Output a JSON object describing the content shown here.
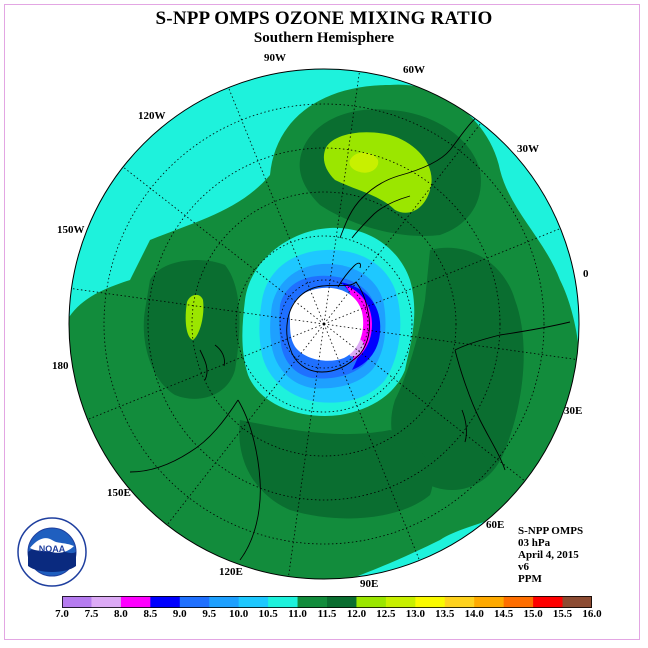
{
  "title": "S-NPP OMPS OZONE MIXING RATIO",
  "subtitle": "Southern Hemisphere",
  "longitude_labels": [
    "90W",
    "60W",
    "30W",
    "0",
    "30E",
    "60E",
    "90E",
    "120E",
    "150E",
    "180",
    "150W",
    "120W"
  ],
  "info": {
    "instrument": "S-NPP OMPS",
    "level": "03 hPa",
    "date": "April 4, 2015",
    "version": "v6",
    "units": "PPM"
  },
  "colorbar": {
    "ticks": [
      "7.0",
      "7.5",
      "8.0",
      "8.5",
      "9.0",
      "9.5",
      "10.0",
      "10.5",
      "11.0",
      "11.5",
      "12.0",
      "12.5",
      "13.0",
      "13.5",
      "14.0",
      "14.5",
      "15.0",
      "15.5",
      "16.0"
    ],
    "colors": [
      "#b57bef",
      "#dcaaf5",
      "#ff00ff",
      "#0000ff",
      "#1f70ff",
      "#1ea0ff",
      "#1ec8ff",
      "#1ef2dc",
      "#128c3c",
      "#0a6e30",
      "#9be600",
      "#c8f000",
      "#fafa00",
      "#ffd21e",
      "#ffaa00",
      "#ff6e00",
      "#ff0000",
      "#8c4b32"
    ]
  },
  "map_colors": {
    "background": "#1ef2dc",
    "green": "#128c3c",
    "dark_green": "#0a6e30",
    "lime": "#9be600",
    "light_lime": "#c8f000",
    "light_blue": "#1ec8ff",
    "mid_blue": "#1ea0ff",
    "blue": "#1f70ff",
    "dark_blue": "#0000ff",
    "magenta": "#ff00ff",
    "violet": "#dcaaf5",
    "pole_white": "#ffffff"
  },
  "logo": {
    "text": "NOAA",
    "ring_text": "NATIONAL OCEANIC AND ATMOSPHERIC ADMINISTRATION · U.S. DEPARTMENT OF COMMERCE"
  }
}
